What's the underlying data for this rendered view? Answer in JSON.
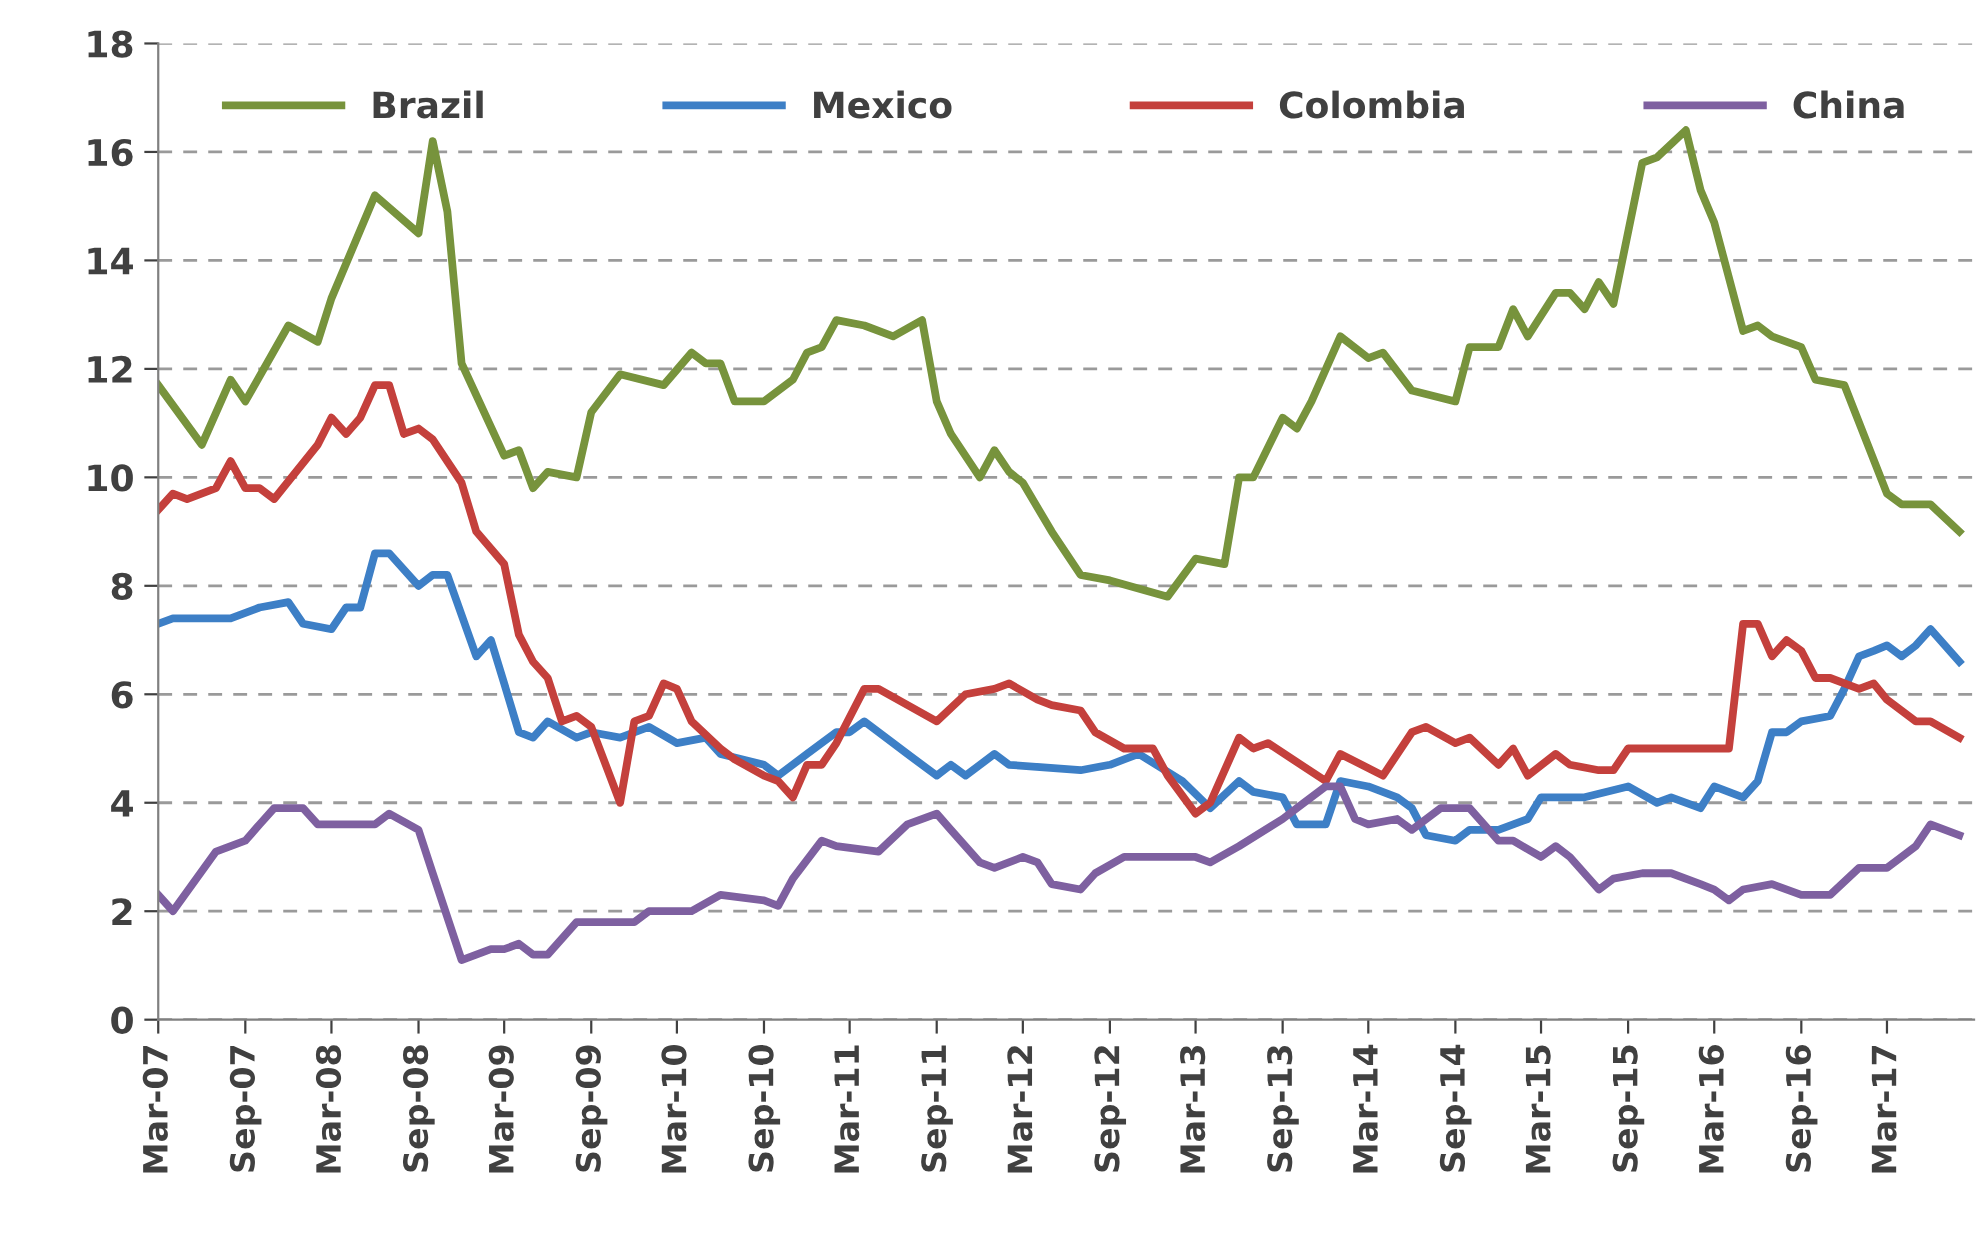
{
  "chart_data": {
    "type": "line",
    "legend": "top",
    "grid": "y",
    "line_style": "solid",
    "marker": "none",
    "ylim": [
      0,
      18
    ],
    "yticks": [
      0,
      2,
      4,
      6,
      8,
      10,
      12,
      14,
      16,
      18
    ],
    "xlim": [
      "2007-03",
      "2017-09"
    ],
    "xticks": [
      {
        "value": "2007-03",
        "label": "Mar-07"
      },
      {
        "value": "2007-09",
        "label": "Sep-07"
      },
      {
        "value": "2008-03",
        "label": "Mar-08"
      },
      {
        "value": "2008-09",
        "label": "Sep-08"
      },
      {
        "value": "2009-03",
        "label": "Mar-09"
      },
      {
        "value": "2009-09",
        "label": "Sep-09"
      },
      {
        "value": "2010-03",
        "label": "Mar-10"
      },
      {
        "value": "2010-09",
        "label": "Sep-10"
      },
      {
        "value": "2011-03",
        "label": "Mar-11"
      },
      {
        "value": "2011-09",
        "label": "Sep-11"
      },
      {
        "value": "2012-03",
        "label": "Mar-12"
      },
      {
        "value": "2012-09",
        "label": "Sep-12"
      },
      {
        "value": "2013-03",
        "label": "Mar-13"
      },
      {
        "value": "2013-09",
        "label": "Sep-13"
      },
      {
        "value": "2014-03",
        "label": "Mar-14"
      },
      {
        "value": "2014-09",
        "label": "Sep-14"
      },
      {
        "value": "2015-03",
        "label": "Mar-15"
      },
      {
        "value": "2015-09",
        "label": "Sep-15"
      },
      {
        "value": "2016-03",
        "label": "Mar-16"
      },
      {
        "value": "2016-09",
        "label": "Sep-16"
      },
      {
        "value": "2017-03",
        "label": "Mar-17"
      }
    ],
    "series": [
      {
        "name": "Brazil",
        "color": "#77933c",
        "x": [
          "2007-03",
          "2007-06",
          "2007-08",
          "2007-09",
          "2007-12",
          "2008-02",
          "2008-03",
          "2008-06",
          "2008-09",
          "2008-10",
          "2008-11",
          "2008-12",
          "2009-03",
          "2009-04",
          "2009-05",
          "2009-06",
          "2009-08",
          "2009-09",
          "2009-11",
          "2010-02",
          "2010-04",
          "2010-05",
          "2010-06",
          "2010-07",
          "2010-09",
          "2010-11",
          "2010-12",
          "2011-01",
          "2011-02",
          "2011-04",
          "2011-06",
          "2011-08",
          "2011-09",
          "2011-10",
          "2011-12",
          "2012-01",
          "2012-02",
          "2012-03",
          "2012-05",
          "2012-07",
          "2012-09",
          "2013-01",
          "2013-03",
          "2013-05",
          "2013-06",
          "2013-07",
          "2013-09",
          "2013-10",
          "2013-11",
          "2014-01",
          "2014-03",
          "2014-04",
          "2014-06",
          "2014-09",
          "2014-10",
          "2014-12",
          "2015-01",
          "2015-02",
          "2015-04",
          "2015-05",
          "2015-06",
          "2015-07",
          "2015-08",
          "2015-10",
          "2015-11",
          "2016-01",
          "2016-02",
          "2016-03",
          "2016-05",
          "2016-06",
          "2016-07",
          "2016-09",
          "2016-10",
          "2016-12",
          "2017-03",
          "2017-04",
          "2017-06",
          "2017-08"
        ],
        "values": [
          11.7,
          10.6,
          11.8,
          11.4,
          12.8,
          12.5,
          13.3,
          15.2,
          14.5,
          16.2,
          14.9,
          12.1,
          10.4,
          10.5,
          9.8,
          10.1,
          10.0,
          11.2,
          11.9,
          11.7,
          12.3,
          12.1,
          12.1,
          11.4,
          11.4,
          11.8,
          12.3,
          12.4,
          12.9,
          12.8,
          12.6,
          12.9,
          11.4,
          10.8,
          10.0,
          10.5,
          10.1,
          9.9,
          9.0,
          8.2,
          8.1,
          7.8,
          8.5,
          8.4,
          10.0,
          10.0,
          11.1,
          10.9,
          11.4,
          12.6,
          12.2,
          12.3,
          11.6,
          11.4,
          12.4,
          12.4,
          13.1,
          12.6,
          13.4,
          13.4,
          13.1,
          13.6,
          13.2,
          15.8,
          15.9,
          16.4,
          15.3,
          14.7,
          12.7,
          12.8,
          12.6,
          12.4,
          11.8,
          11.7,
          9.7,
          9.5,
          9.5,
          9.0
        ]
      },
      {
        "name": "Mexico",
        "color": "#3d7fc6",
        "x": [
          "2007-03",
          "2007-04",
          "2007-08",
          "2007-10",
          "2007-12",
          "2008-01",
          "2008-03",
          "2008-04",
          "2008-05",
          "2008-06",
          "2008-07",
          "2008-09",
          "2008-10",
          "2008-11",
          "2009-01",
          "2009-02",
          "2009-03",
          "2009-04",
          "2009-05",
          "2009-06",
          "2009-08",
          "2009-09",
          "2009-11",
          "2010-01",
          "2010-03",
          "2010-05",
          "2010-06",
          "2010-09",
          "2010-10",
          "2010-12",
          "2011-02",
          "2011-03",
          "2011-04",
          "2011-06",
          "2011-07",
          "2011-09",
          "2011-10",
          "2011-11",
          "2012-01",
          "2012-02",
          "2012-07",
          "2012-09",
          "2012-10",
          "2012-11",
          "2013-02",
          "2013-04",
          "2013-06",
          "2013-07",
          "2013-09",
          "2013-10",
          "2013-12",
          "2014-01",
          "2014-03",
          "2014-05",
          "2014-06",
          "2014-07",
          "2014-09",
          "2014-10",
          "2014-12",
          "2015-02",
          "2015-03",
          "2015-06",
          "2015-09",
          "2015-11",
          "2015-12",
          "2016-02",
          "2016-03",
          "2016-05",
          "2016-06",
          "2016-07",
          "2016-08",
          "2016-09",
          "2016-11",
          "2016-12",
          "2017-01",
          "2017-02",
          "2017-03",
          "2017-04",
          "2017-05",
          "2017-06",
          "2017-08"
        ],
        "values": [
          7.3,
          7.4,
          7.4,
          7.6,
          7.7,
          7.3,
          7.2,
          7.6,
          7.6,
          8.6,
          8.6,
          8.0,
          8.2,
          8.2,
          6.7,
          7.0,
          6.2,
          5.3,
          5.2,
          5.5,
          5.2,
          5.3,
          5.2,
          5.4,
          5.1,
          5.2,
          4.9,
          4.7,
          4.5,
          4.9,
          5.3,
          5.3,
          5.5,
          5.1,
          4.9,
          4.5,
          4.7,
          4.5,
          4.9,
          4.7,
          4.6,
          4.7,
          4.8,
          4.9,
          4.4,
          3.9,
          4.4,
          4.2,
          4.1,
          3.6,
          3.6,
          4.4,
          4.3,
          4.1,
          3.9,
          3.4,
          3.3,
          3.5,
          3.5,
          3.7,
          4.1,
          4.1,
          4.3,
          4.0,
          4.1,
          3.9,
          4.3,
          4.1,
          4.4,
          5.3,
          5.3,
          5.5,
          5.6,
          6.1,
          6.7,
          6.8,
          6.9,
          6.7,
          6.9,
          7.2,
          6.6
        ]
      },
      {
        "name": "Colombia",
        "color": "#c4403c",
        "x": [
          "2007-03",
          "2007-04",
          "2007-05",
          "2007-07",
          "2007-08",
          "2007-09",
          "2007-10",
          "2007-11",
          "2008-02",
          "2008-03",
          "2008-04",
          "2008-05",
          "2008-06",
          "2008-07",
          "2008-08",
          "2008-09",
          "2008-10",
          "2008-12",
          "2009-01",
          "2009-03",
          "2009-04",
          "2009-05",
          "2009-06",
          "2009-07",
          "2009-08",
          "2009-09",
          "2009-11",
          "2009-12",
          "2010-01",
          "2010-02",
          "2010-03",
          "2010-04",
          "2010-06",
          "2010-07",
          "2010-09",
          "2010-10",
          "2010-11",
          "2010-12",
          "2011-01",
          "2011-02",
          "2011-04",
          "2011-05",
          "2011-09",
          "2011-11",
          "2012-01",
          "2012-02",
          "2012-04",
          "2012-05",
          "2012-07",
          "2012-08",
          "2012-10",
          "2012-12",
          "2013-01",
          "2013-03",
          "2013-04",
          "2013-06",
          "2013-07",
          "2013-08",
          "2013-12",
          "2014-01",
          "2014-04",
          "2014-06",
          "2014-07",
          "2014-09",
          "2014-10",
          "2014-12",
          "2015-01",
          "2015-02",
          "2015-04",
          "2015-05",
          "2015-07",
          "2015-08",
          "2015-09",
          "2016-04",
          "2016-05",
          "2016-06",
          "2016-07",
          "2016-08",
          "2016-09",
          "2016-10",
          "2016-11",
          "2017-01",
          "2017-02",
          "2017-03",
          "2017-05",
          "2017-06",
          "2017-08"
        ],
        "values": [
          9.4,
          9.7,
          9.6,
          9.8,
          10.3,
          9.8,
          9.8,
          9.6,
          10.6,
          11.1,
          10.8,
          11.1,
          11.7,
          11.7,
          10.8,
          10.9,
          10.7,
          9.9,
          9.0,
          8.4,
          7.1,
          6.6,
          6.3,
          5.5,
          5.6,
          5.4,
          4.0,
          5.5,
          5.6,
          6.2,
          6.1,
          5.5,
          5.0,
          4.8,
          4.5,
          4.4,
          4.1,
          4.7,
          4.7,
          5.1,
          6.1,
          6.1,
          5.5,
          6.0,
          6.1,
          6.2,
          5.9,
          5.8,
          5.7,
          5.3,
          5.0,
          5.0,
          4.5,
          3.8,
          4.0,
          5.2,
          5.0,
          5.1,
          4.4,
          4.9,
          4.5,
          5.3,
          5.4,
          5.1,
          5.2,
          4.7,
          5.0,
          4.5,
          4.9,
          4.7,
          4.6,
          4.6,
          5.0,
          5.0,
          7.3,
          7.3,
          6.7,
          7.0,
          6.8,
          6.3,
          6.3,
          6.1,
          6.2,
          5.9,
          5.5,
          5.5,
          5.2
        ]
      },
      {
        "name": "China",
        "color": "#7e60a0",
        "x": [
          "2007-03",
          "2007-04",
          "2007-07",
          "2007-09",
          "2007-10",
          "2007-11",
          "2008-01",
          "2008-02",
          "2008-04",
          "2008-06",
          "2008-07",
          "2008-09",
          "2008-10",
          "2008-12",
          "2009-02",
          "2009-03",
          "2009-04",
          "2009-05",
          "2009-06",
          "2009-08",
          "2009-09",
          "2009-12",
          "2010-01",
          "2010-04",
          "2010-06",
          "2010-09",
          "2010-10",
          "2010-11",
          "2011-01",
          "2011-02",
          "2011-05",
          "2011-07",
          "2011-09",
          "2011-10",
          "2011-12",
          "2012-01",
          "2012-03",
          "2012-04",
          "2012-05",
          "2012-07",
          "2012-08",
          "2012-10",
          "2013-01",
          "2013-03",
          "2013-04",
          "2013-06",
          "2013-09",
          "2013-10",
          "2013-12",
          "2014-01",
          "2014-02",
          "2014-03",
          "2014-05",
          "2014-06",
          "2014-08",
          "2014-10",
          "2014-12",
          "2015-01",
          "2015-03",
          "2015-04",
          "2015-05",
          "2015-07",
          "2015-08",
          "2015-10",
          "2015-12",
          "2016-02",
          "2016-03",
          "2016-04",
          "2016-05",
          "2016-07",
          "2016-09",
          "2016-11",
          "2017-01",
          "2017-03",
          "2017-04",
          "2017-05",
          "2017-06",
          "2017-08"
        ],
        "values": [
          2.3,
          2.0,
          3.1,
          3.3,
          3.6,
          3.9,
          3.9,
          3.6,
          3.6,
          3.6,
          3.8,
          3.5,
          2.7,
          1.1,
          1.3,
          1.3,
          1.4,
          1.2,
          1.2,
          1.8,
          1.8,
          1.8,
          2.0,
          2.0,
          2.3,
          2.2,
          2.1,
          2.6,
          3.3,
          3.2,
          3.1,
          3.6,
          3.8,
          3.5,
          2.9,
          2.8,
          3.0,
          2.9,
          2.5,
          2.4,
          2.7,
          3.0,
          3.0,
          3.0,
          2.9,
          3.2,
          3.7,
          3.9,
          4.3,
          4.3,
          3.7,
          3.6,
          3.7,
          3.5,
          3.9,
          3.9,
          3.3,
          3.3,
          3.0,
          3.2,
          3.0,
          2.4,
          2.6,
          2.7,
          2.7,
          2.5,
          2.4,
          2.2,
          2.4,
          2.5,
          2.3,
          2.3,
          2.8,
          2.8,
          3.0,
          3.2,
          3.6,
          3.4
        ]
      }
    ]
  }
}
